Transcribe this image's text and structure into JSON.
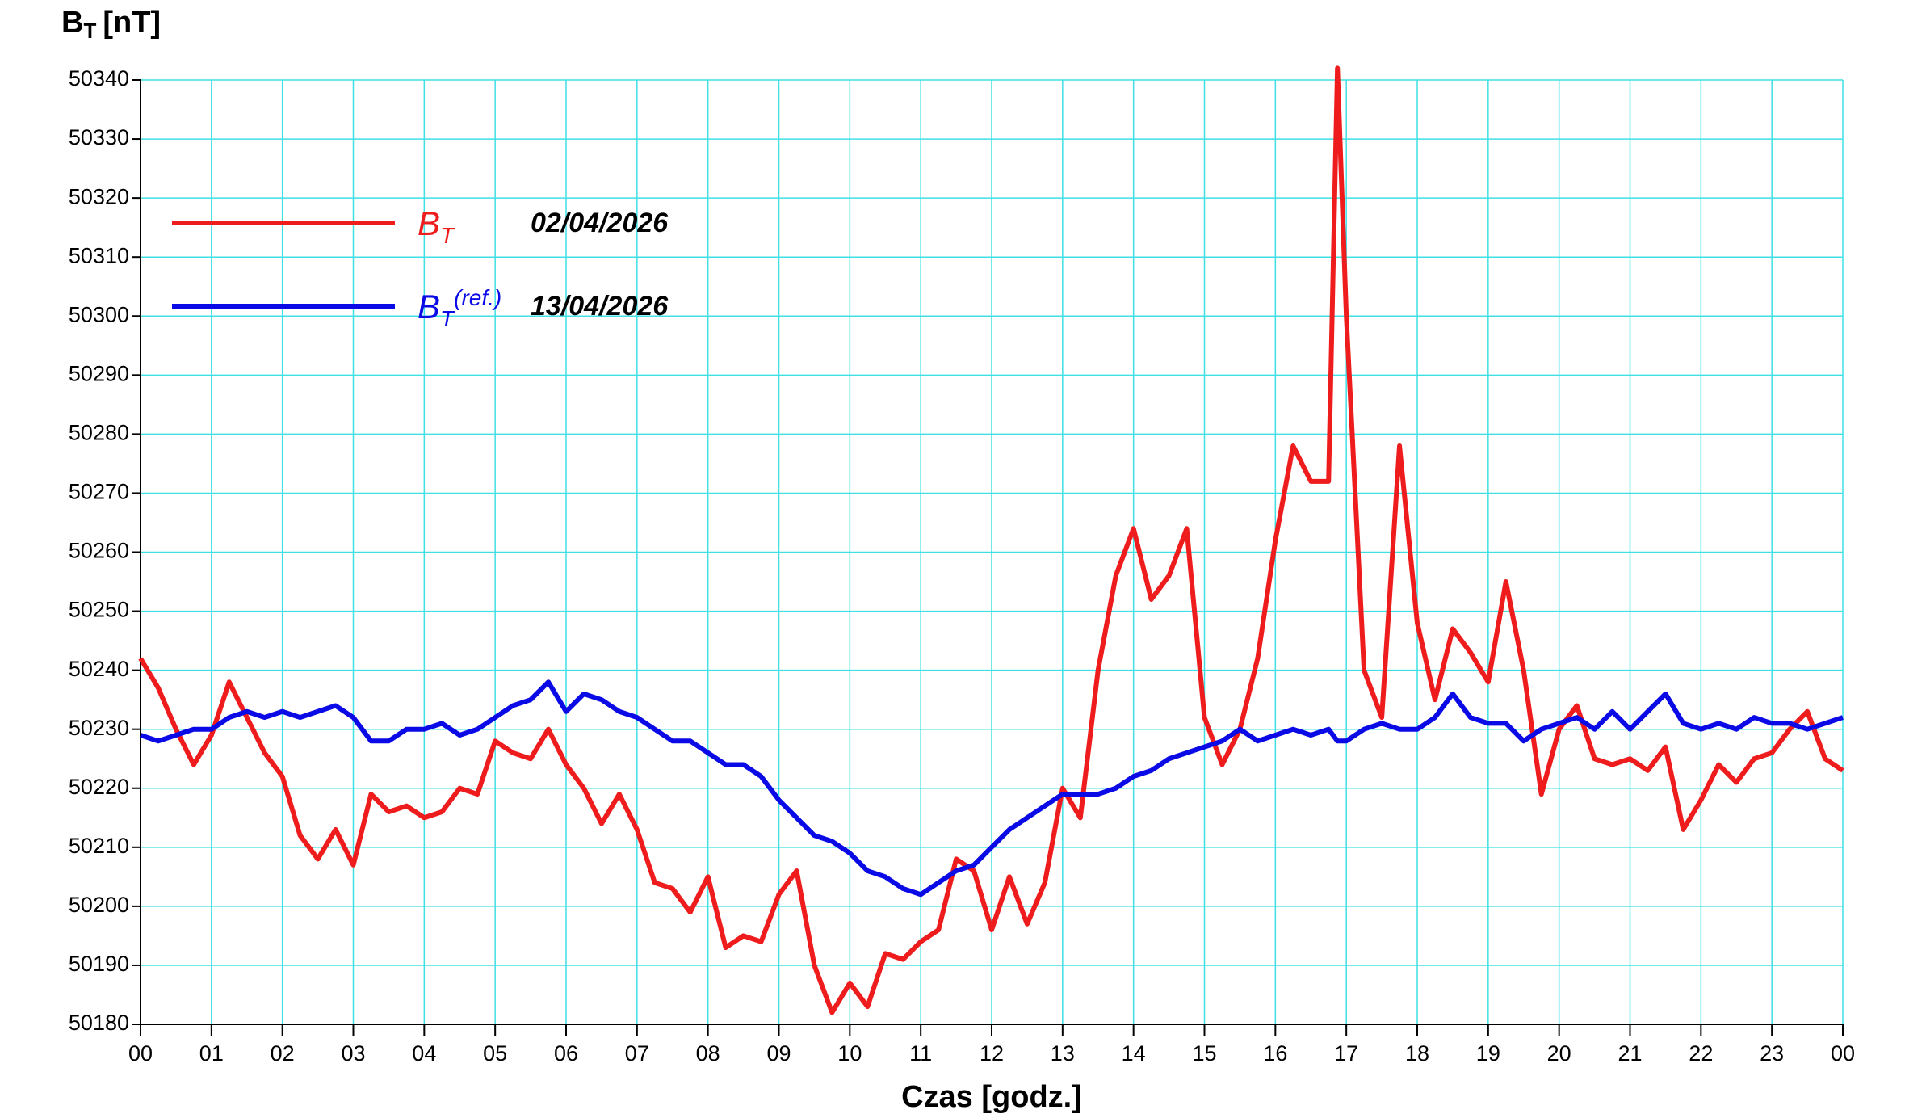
{
  "chart_data": {
    "type": "line",
    "ylabel": {
      "main": "B",
      "sub": "T",
      "unit": "[nT]"
    },
    "xlabel": "Czas [godz.]",
    "xlim": [
      0,
      24
    ],
    "ylim": [
      50180,
      50340
    ],
    "yticks": [
      50180,
      50190,
      50200,
      50210,
      50220,
      50230,
      50240,
      50250,
      50260,
      50270,
      50280,
      50290,
      50300,
      50310,
      50320,
      50330,
      50340
    ],
    "xticks": [
      {
        "value": 0,
        "label": "00"
      },
      {
        "value": 1,
        "label": "01"
      },
      {
        "value": 2,
        "label": "02"
      },
      {
        "value": 3,
        "label": "03"
      },
      {
        "value": 4,
        "label": "04"
      },
      {
        "value": 5,
        "label": "05"
      },
      {
        "value": 6,
        "label": "06"
      },
      {
        "value": 7,
        "label": "07"
      },
      {
        "value": 8,
        "label": "08"
      },
      {
        "value": 9,
        "label": "09"
      },
      {
        "value": 10,
        "label": "10"
      },
      {
        "value": 11,
        "label": "11"
      },
      {
        "value": 12,
        "label": "12"
      },
      {
        "value": 13,
        "label": "13"
      },
      {
        "value": 14,
        "label": "14"
      },
      {
        "value": 15,
        "label": "15"
      },
      {
        "value": 16,
        "label": "16"
      },
      {
        "value": 17,
        "label": "17"
      },
      {
        "value": 18,
        "label": "18"
      },
      {
        "value": 19,
        "label": "19"
      },
      {
        "value": 20,
        "label": "20"
      },
      {
        "value": 21,
        "label": "21"
      },
      {
        "value": 22,
        "label": "22"
      },
      {
        "value": 23,
        "label": "23"
      },
      {
        "value": 24,
        "label": "00"
      }
    ],
    "grid": true,
    "grid_color": "#3ee0e4",
    "legend": "upper left",
    "x": [
      0,
      0.25,
      0.5,
      0.75,
      1,
      1.25,
      1.5,
      1.75,
      2,
      2.25,
      2.5,
      2.75,
      3,
      3.25,
      3.5,
      3.75,
      4,
      4.25,
      4.5,
      4.75,
      5,
      5.25,
      5.5,
      5.75,
      6,
      6.25,
      6.5,
      6.75,
      7,
      7.25,
      7.5,
      7.75,
      8,
      8.25,
      8.5,
      8.75,
      9,
      9.25,
      9.5,
      9.75,
      10,
      10.25,
      10.5,
      10.75,
      11,
      11.25,
      11.5,
      11.75,
      12,
      12.25,
      12.5,
      12.75,
      13,
      13.25,
      13.5,
      13.75,
      14,
      14.25,
      14.5,
      14.75,
      15,
      15.25,
      15.5,
      15.75,
      16,
      16.25,
      16.5,
      16.75,
      16.875,
      17,
      17.25,
      17.5,
      17.75,
      18,
      18.25,
      18.5,
      18.75,
      19,
      19.25,
      19.5,
      19.75,
      20,
      20.25,
      20.5,
      20.75,
      21,
      21.25,
      21.5,
      21.75,
      22,
      22.25,
      22.5,
      22.75,
      23,
      23.25,
      23.5,
      23.75,
      24
    ],
    "series": [
      {
        "name": "B",
        "name_sub": "T",
        "label": "02/04/2026",
        "color": "#ee1c1c",
        "values": [
          50242,
          50237,
          50230,
          50224,
          50229,
          50238,
          50232,
          50226,
          50222,
          50212,
          50208,
          50213,
          50207,
          50219,
          50216,
          50217,
          50215,
          50216,
          50220,
          50219,
          50228,
          50226,
          50225,
          50230,
          50224,
          50220,
          50214,
          50219,
          50213,
          50204,
          50203,
          50199,
          50205,
          50193,
          50195,
          50194,
          50202,
          50206,
          50190,
          50182,
          50187,
          50183,
          50192,
          50191,
          50194,
          50196,
          50208,
          50206,
          50196,
          50205,
          50197,
          50204,
          50220,
          50215,
          50240,
          50256,
          50264,
          50252,
          50256,
          50264,
          50232,
          50224,
          50230,
          50242,
          50262,
          50278,
          50272,
          50272,
          50342,
          50300,
          50240,
          50232,
          50278,
          50248,
          50235,
          50247,
          50243,
          50238,
          50255,
          50240,
          50219,
          50230,
          50234,
          50225,
          50224,
          50225,
          50223,
          50227,
          50213,
          50218,
          50224,
          50221,
          50225,
          50226,
          50230,
          50233,
          50225,
          50223
        ]
      },
      {
        "name": "B",
        "name_sub": "T",
        "name_sup": "(ref.)",
        "label": "13/04/2026",
        "color": "#0a0ae6",
        "values": [
          50229,
          50228,
          50229,
          50230,
          50230,
          50232,
          50233,
          50232,
          50233,
          50232,
          50233,
          50234,
          50232,
          50228,
          50228,
          50230,
          50230,
          50231,
          50229,
          50230,
          50232,
          50234,
          50235,
          50238,
          50233,
          50236,
          50235,
          50233,
          50232,
          50230,
          50228,
          50228,
          50226,
          50224,
          50224,
          50222,
          50218,
          50215,
          50212,
          50211,
          50209,
          50206,
          50205,
          50203,
          50202,
          50204,
          50206,
          50207,
          50210,
          50213,
          50215,
          50217,
          50219,
          50219,
          50219,
          50220,
          50222,
          50223,
          50225,
          50226,
          50227,
          50228,
          50230,
          50228,
          50229,
          50230,
          50229,
          50230,
          50228,
          50228,
          50230,
          50231,
          50230,
          50230,
          50232,
          50236,
          50232,
          50231,
          50231,
          50228,
          50230,
          50231,
          50232,
          50230,
          50233,
          50230,
          50233,
          50236,
          50231,
          50230,
          50231,
          50230,
          50232,
          50231,
          50231,
          50230,
          50231,
          50232
        ]
      }
    ]
  }
}
